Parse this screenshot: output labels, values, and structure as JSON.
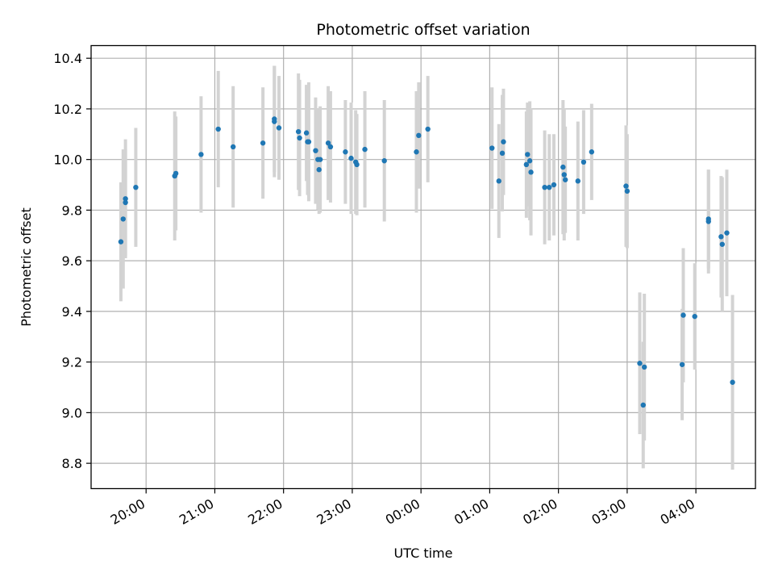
{
  "chart_data": {
    "type": "scatter",
    "title": "Photometric offset variation",
    "xlabel": "UTC time",
    "ylabel": "Photometric offset",
    "x_axis_kind": "time",
    "xlim": [
      "19:12",
      "04:52"
    ],
    "ylim": [
      8.7,
      10.45
    ],
    "grid": true,
    "x_ticks": [
      "20:00",
      "21:00",
      "22:00",
      "23:00",
      "00:00",
      "01:00",
      "02:00",
      "03:00",
      "04:00"
    ],
    "y_ticks": [
      "8.8",
      "9.0",
      "9.2",
      "9.4",
      "9.6",
      "9.8",
      "10.0",
      "10.2",
      "10.4"
    ],
    "colors": {
      "point": "#1f77b4",
      "errorbar": "#d3d3d3",
      "grid": "#b0b0b0"
    },
    "series": [
      {
        "x": [
          "19:38",
          "19:40",
          "19:42",
          "19:42",
          "19:51",
          "20:25",
          "20:26",
          "20:48",
          "21:03",
          "21:16",
          "21:42",
          "21:52",
          "21:52",
          "21:56",
          "22:13",
          "22:14",
          "22:20",
          "22:21",
          "22:22",
          "22:28",
          "22:30",
          "22:31",
          "22:32",
          "22:39",
          "22:41",
          "22:54",
          "22:59",
          "23:03",
          "23:04",
          "23:11",
          "23:28",
          "23:56",
          "23:58",
          "00:06",
          "01:02",
          "01:08",
          "01:11",
          "01:12",
          "01:32",
          "01:33",
          "01:35",
          "01:36",
          "01:48",
          "01:52",
          "01:56",
          "02:04",
          "02:05",
          "02:06",
          "02:17",
          "02:22",
          "02:29",
          "02:59",
          "03:00",
          "03:11",
          "03:14",
          "03:15",
          "03:48",
          "03:49",
          "03:59",
          "04:11",
          "04:11",
          "04:22",
          "04:23",
          "04:27",
          "04:32"
        ],
        "y": [
          9.675,
          9.765,
          9.83,
          9.845,
          9.89,
          9.935,
          9.945,
          10.02,
          10.12,
          10.05,
          10.065,
          10.16,
          10.15,
          10.125,
          10.11,
          10.085,
          10.105,
          10.07,
          10.07,
          10.035,
          10.0,
          9.96,
          10.0,
          10.065,
          10.05,
          10.03,
          10.005,
          9.99,
          9.98,
          10.04,
          9.995,
          10.03,
          10.095,
          10.12,
          10.045,
          9.915,
          10.025,
          10.07,
          9.98,
          10.02,
          9.995,
          9.95,
          9.89,
          9.89,
          9.9,
          9.97,
          9.94,
          9.92,
          9.915,
          9.99,
          10.03,
          9.895,
          9.875,
          9.195,
          9.03,
          9.18,
          9.19,
          9.385,
          9.38,
          9.755,
          9.765,
          9.695,
          9.665,
          9.71,
          9.12
        ],
        "err": [
          0.235,
          0.275,
          0.21,
          0.235,
          0.235,
          0.255,
          0.225,
          0.23,
          0.23,
          0.24,
          0.22,
          0.21,
          0.22,
          0.205,
          0.23,
          0.23,
          0.19,
          0.21,
          0.235,
          0.21,
          0.2,
          0.175,
          0.21,
          0.225,
          0.22,
          0.205,
          0.22,
          0.205,
          0.2,
          0.23,
          0.24,
          0.24,
          0.21,
          0.21,
          0.24,
          0.225,
          0.23,
          0.21,
          0.21,
          0.205,
          0.235,
          0.25,
          0.225,
          0.21,
          0.2,
          0.265,
          0.26,
          0.21,
          0.235,
          0.205,
          0.19,
          0.24,
          0.225,
          0.28,
          0.25,
          0.29,
          0.22,
          0.265,
          0.21,
          0.205,
          0.195,
          0.24,
          0.265,
          0.25,
          0.345
        ]
      }
    ]
  }
}
